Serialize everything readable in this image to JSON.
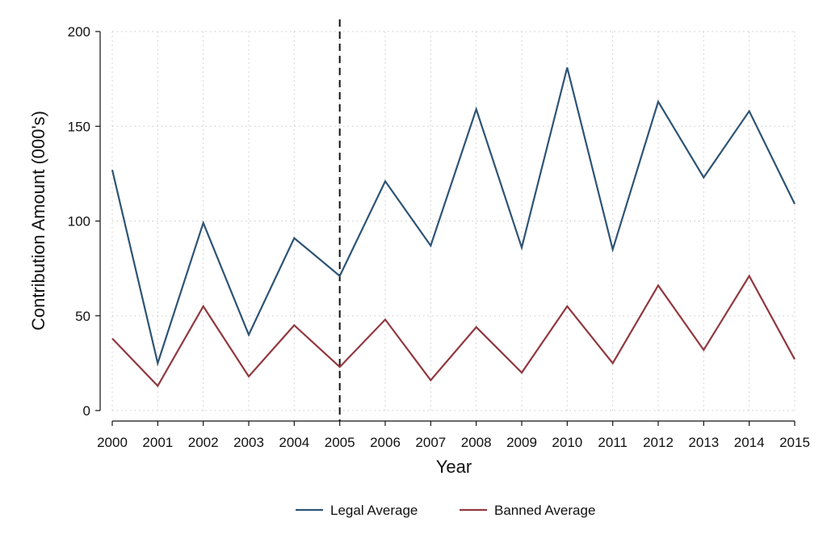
{
  "chart_data": {
    "type": "line",
    "title": "",
    "xlabel": "Year",
    "ylabel": "Contribution Amount (000's)",
    "x": [
      2000,
      2001,
      2002,
      2003,
      2004,
      2005,
      2006,
      2007,
      2008,
      2009,
      2010,
      2011,
      2012,
      2013,
      2014,
      2015
    ],
    "xticks": [
      "2000",
      "2001",
      "2002",
      "2003",
      "2004",
      "2005",
      "2006",
      "2007",
      "2008",
      "2009",
      "2010",
      "2011",
      "2012",
      "2013",
      "2014",
      "2015"
    ],
    "yticks": [
      "0",
      "50",
      "100",
      "150",
      "200"
    ],
    "ylim": [
      0,
      200
    ],
    "grid": true,
    "legend_position": "bottom",
    "reference_line": {
      "x": 2005,
      "style": "dashed"
    },
    "series": [
      {
        "name": "Legal Average",
        "color": "#2e5475",
        "values": [
          127,
          25,
          99,
          40,
          91,
          71,
          121,
          87,
          159,
          86,
          181,
          85,
          163,
          123,
          158,
          109
        ]
      },
      {
        "name": "Banned Average",
        "color": "#91383f",
        "values": [
          38,
          13,
          55,
          18,
          45,
          23,
          48,
          16,
          44,
          20,
          55,
          25,
          66,
          32,
          71,
          27
        ]
      }
    ]
  }
}
